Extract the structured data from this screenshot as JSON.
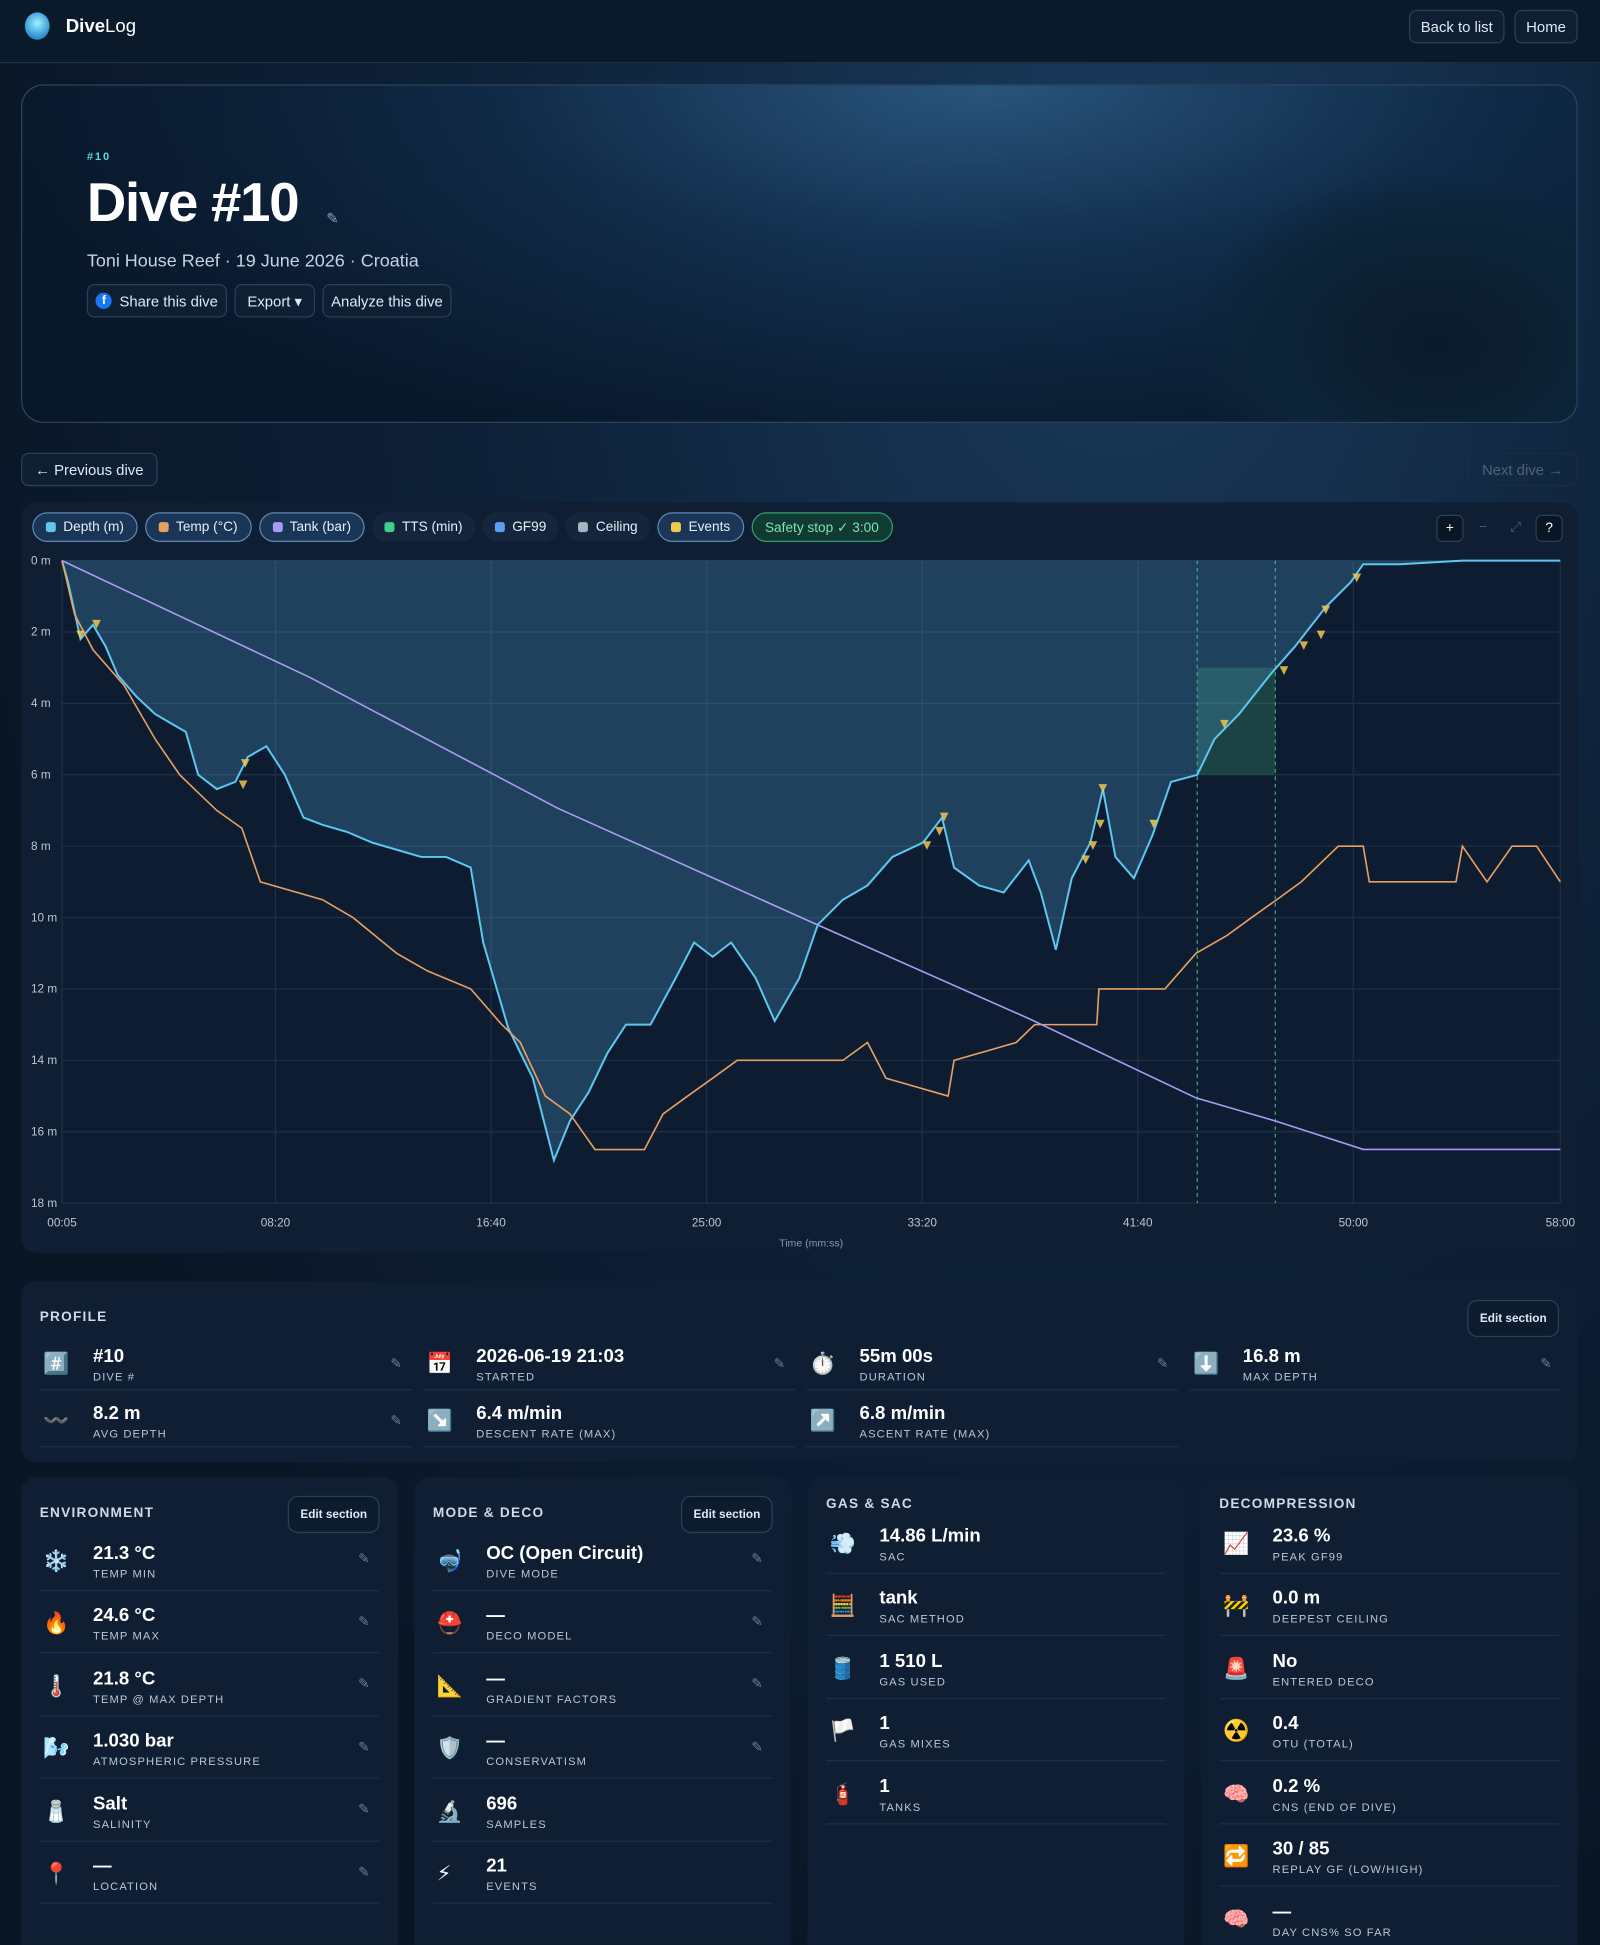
{
  "header": {
    "brand_bold": "Dive",
    "brand_rest": "Log",
    "nav": [
      "Back to list",
      "Home"
    ]
  },
  "hero": {
    "kicker": "#10",
    "title": "Dive #10",
    "subtitle": "Toni House Reef · 19 June 2026 · Croatia",
    "actions": [
      "Share this dive",
      "Export ▾",
      "Analyze this dive"
    ],
    "share_icon": "f"
  },
  "edit_icon": "✎",
  "pager": {
    "previous": "← Previous dive",
    "next": "Next dive →"
  },
  "controls": [
    "+",
    "−",
    "⤢",
    "?"
  ],
  "chart_data": {
    "type": "line",
    "x_label": "Time (mm:ss)",
    "grid": true,
    "y_inverted": true,
    "xlim": [
      5,
      3480
    ],
    "xticks": [
      {
        "value": 5,
        "label": "00:05"
      },
      {
        "value": 500,
        "label": "08:20"
      },
      {
        "value": 1000,
        "label": "16:40"
      },
      {
        "value": 1500,
        "label": "25:00"
      },
      {
        "value": 2000,
        "label": "33:20"
      },
      {
        "value": 2500,
        "label": "41:40"
      },
      {
        "value": 3000,
        "label": "50:00"
      },
      {
        "value": 3480,
        "label": "58:00"
      }
    ],
    "ylim": [
      0,
      18
    ],
    "yticks": [
      {
        "value": 0,
        "label": "0 m"
      },
      {
        "value": 2,
        "label": "2 m"
      },
      {
        "value": 4,
        "label": "4 m"
      },
      {
        "value": 6,
        "label": "6 m"
      },
      {
        "value": 8,
        "label": "8 m"
      },
      {
        "value": 10,
        "label": "10 m"
      },
      {
        "value": 12,
        "label": "12 m"
      },
      {
        "value": 14,
        "label": "14 m"
      },
      {
        "value": 16,
        "label": "16 m"
      },
      {
        "value": 18,
        "label": "18 m"
      }
    ],
    "series": [
      {
        "name": "Depth (m)",
        "color": "#5cc8f0",
        "fill": true,
        "x": [
          5,
          19,
          48,
          77,
          106,
          134,
          177,
          221,
          264,
          292,
          321,
          364,
          407,
          436,
          479,
          522,
          565,
          609,
          666,
          724,
          781,
          838,
          896,
          953,
          982,
          1040,
          1097,
          1146,
          1183,
          1226,
          1270,
          1313,
          1370,
          1428,
          1471,
          1514,
          1557,
          1614,
          1658,
          1715,
          1758,
          1816,
          1873,
          1931,
          2002,
          2046,
          2074,
          2132,
          2189,
          2247,
          2275,
          2310,
          2347,
          2390,
          2419,
          2448,
          2491,
          2534,
          2577,
          2638,
          2678,
          2735,
          2807,
          2865,
          2936,
          2994,
          3023,
          3109,
          3253,
          3480
        ],
        "values": [
          0,
          0.6,
          2.2,
          1.8,
          2.4,
          3.2,
          3.8,
          4.3,
          4.6,
          4.8,
          6.0,
          6.4,
          6.2,
          5.5,
          5.2,
          6.0,
          7.2,
          7.4,
          7.6,
          7.9,
          8.1,
          8.3,
          8.3,
          8.6,
          10.7,
          13.1,
          14.5,
          16.8,
          15.7,
          14.9,
          13.8,
          13.0,
          13.0,
          11.7,
          10.7,
          11.1,
          10.7,
          11.7,
          12.9,
          11.7,
          10.2,
          9.5,
          9.1,
          8.3,
          7.9,
          7.2,
          8.6,
          9.1,
          9.3,
          8.4,
          9.3,
          10.9,
          8.9,
          7.9,
          6.4,
          8.3,
          8.9,
          7.7,
          6.2,
          6.0,
          5.0,
          4.3,
          3.2,
          2.4,
          1.3,
          0.6,
          0.1,
          0.1,
          0,
          0
        ]
      },
      {
        "name": "Temp (°C)",
        "color": "#e8a060",
        "lim": [
          24.6,
          21.0
        ],
        "x": [
          5,
          34,
          77,
          149,
          221,
          278,
          321,
          364,
          422,
          465,
          609,
          680,
          781,
          853,
          953,
          1025,
          1068,
          1126,
          1183,
          1241,
          1356,
          1399,
          1456,
          1514,
          1571,
          1816,
          1873,
          1916,
          2060,
          2074,
          2218,
          2261,
          2405,
          2410,
          2477,
          2563,
          2635,
          2707,
          2764,
          2822,
          2879,
          2965,
          3023,
          3037,
          3238,
          3253,
          3310,
          3368,
          3396,
          3425,
          3480
        ],
        "values": [
          24.6,
          24.3,
          24.1,
          23.9,
          23.6,
          23.4,
          23.3,
          23.2,
          23.1,
          22.8,
          22.7,
          22.6,
          22.4,
          22.3,
          22.2,
          22.0,
          21.9,
          21.6,
          21.5,
          21.3,
          21.3,
          21.5,
          21.6,
          21.7,
          21.8,
          21.8,
          21.9,
          21.7,
          21.6,
          21.8,
          21.9,
          22.0,
          22.0,
          22.2,
          22.2,
          22.2,
          22.4,
          22.5,
          22.6,
          22.7,
          22.8,
          23.0,
          23.0,
          22.8,
          22.8,
          23.0,
          22.8,
          23.0,
          23.0,
          23.0,
          22.8
        ]
      },
      {
        "name": "Tank (bar)",
        "color": "#a99cf0",
        "lim": [
          200,
          62.5
        ],
        "x": [
          5,
          580,
          1155,
          1758,
          2247,
          2635,
          2822,
          3023,
          3480
        ],
        "values": [
          200,
          175,
          147,
          122,
          102,
          85,
          80,
          74,
          74
        ]
      },
      {
        "name": "Events",
        "color": "#f0c850",
        "marker": "triangle",
        "x": [
          48,
          85,
          425,
          430,
          2011,
          2040,
          2051,
          2379,
          2396,
          2413,
          2419,
          2537,
          2701,
          2839,
          2885,
          2925,
          2936,
          3008
        ],
        "values": [
          2.1,
          1.8,
          6.3,
          5.7,
          8.0,
          7.6,
          7.2,
          8.4,
          8.0,
          7.4,
          6.4,
          7.4,
          4.6,
          3.1,
          2.4,
          2.1,
          1.4,
          0.5
        ]
      }
    ],
    "toggles": [
      {
        "name": "TTS (min)",
        "color": "#3ecf8e"
      },
      {
        "name": "GF99",
        "color": "#5aa0f0"
      },
      {
        "name": "Ceiling",
        "color": "#aab4c0"
      }
    ],
    "safety_stop": {
      "label": "Safety stop ✓ 3:00",
      "start": 2638,
      "end": 2819,
      "top": 3,
      "bottom": 6
    }
  },
  "profile": {
    "title": "PROFILE",
    "edit": "Edit section",
    "items": [
      {
        "icon": "#️⃣",
        "value": "#10",
        "label": "DIVE #",
        "editable": true
      },
      {
        "icon": "📅",
        "value": "2026-06-19 21:03",
        "label": "STARTED",
        "editable": true
      },
      {
        "icon": "⏱️",
        "value": "55m 00s",
        "label": "DURATION",
        "editable": true
      },
      {
        "icon": "⬇️",
        "value": "16.8 m",
        "label": "MAX DEPTH",
        "editable": true
      },
      {
        "icon": "〰️",
        "value": "8.2 m",
        "label": "AVG DEPTH",
        "editable": true
      },
      {
        "icon": "↘️",
        "value": "6.4 m/min",
        "label": "DESCENT RATE (MAX)",
        "editable": false
      },
      {
        "icon": "↗️",
        "value": "6.8 m/min",
        "label": "ASCENT RATE (MAX)",
        "editable": false
      }
    ]
  },
  "cards": [
    {
      "title": "ENVIRONMENT",
      "edit": "Edit section",
      "items": [
        {
          "icon": "❄️",
          "value": "21.3 °C",
          "label": "TEMP MIN",
          "editable": true
        },
        {
          "icon": "🔥",
          "value": "24.6 °C",
          "label": "TEMP MAX",
          "editable": true
        },
        {
          "icon": "🌡️",
          "value": "21.8 °C",
          "label": "TEMP @ MAX DEPTH",
          "editable": true
        },
        {
          "icon": "🌬️",
          "value": "1.030 bar",
          "label": "ATMOSPHERIC PRESSURE",
          "editable": true
        },
        {
          "icon": "🧂",
          "value": "Salt",
          "label": "SALINITY",
          "editable": true
        },
        {
          "icon": "📍",
          "value": "—",
          "label": "LOCATION",
          "editable": true
        }
      ]
    },
    {
      "title": "MODE & DECO",
      "edit": "Edit section",
      "items": [
        {
          "icon": "🤿",
          "value": "OC (Open Circuit)",
          "label": "DIVE MODE",
          "editable": true
        },
        {
          "icon": "⛑️",
          "value": "—",
          "label": "DECO MODEL",
          "editable": true
        },
        {
          "icon": "📐",
          "value": "—",
          "label": "GRADIENT FACTORS",
          "editable": true
        },
        {
          "icon": "🛡️",
          "value": "—",
          "label": "CONSERVATISM",
          "editable": true
        },
        {
          "icon": "🔬",
          "value": "696",
          "label": "SAMPLES",
          "editable": false
        },
        {
          "icon": "⚡",
          "value": "21",
          "label": "EVENTS",
          "editable": false
        }
      ]
    },
    {
      "title": "GAS & SAC",
      "items": [
        {
          "icon": "💨",
          "value": "14.86 L/min",
          "label": "SAC",
          "editable": false
        },
        {
          "icon": "🧮",
          "value": "tank",
          "label": "SAC METHOD",
          "editable": false
        },
        {
          "icon": "🛢️",
          "value": "1 510 L",
          "label": "GAS USED",
          "editable": false
        },
        {
          "icon": "🏳️",
          "value": "1",
          "label": "GAS MIXES",
          "editable": false
        },
        {
          "icon": "🧯",
          "value": "1",
          "label": "TANKS",
          "editable": false
        }
      ]
    },
    {
      "title": "DECOMPRESSION",
      "items": [
        {
          "icon": "📈",
          "value": "23.6 %",
          "label": "PEAK GF99",
          "editable": false
        },
        {
          "icon": "🚧",
          "value": "0.0 m",
          "label": "DEEPEST CEILING",
          "editable": false
        },
        {
          "icon": "🚨",
          "value": "No",
          "label": "ENTERED DECO",
          "editable": false
        },
        {
          "icon": "☢️",
          "value": "0.4",
          "label": "OTU (TOTAL)",
          "editable": false
        },
        {
          "icon": "🧠",
          "value": "0.2 %",
          "label": "CNS (END OF DIVE)",
          "editable": false
        },
        {
          "icon": "🔁",
          "value": "30 / 85",
          "label": "REPLAY GF (LOW/HIGH)",
          "editable": false
        },
        {
          "icon": "🧠",
          "value": "—",
          "label": "DAY CNS% SO FAR",
          "editable": false
        }
      ]
    }
  ]
}
